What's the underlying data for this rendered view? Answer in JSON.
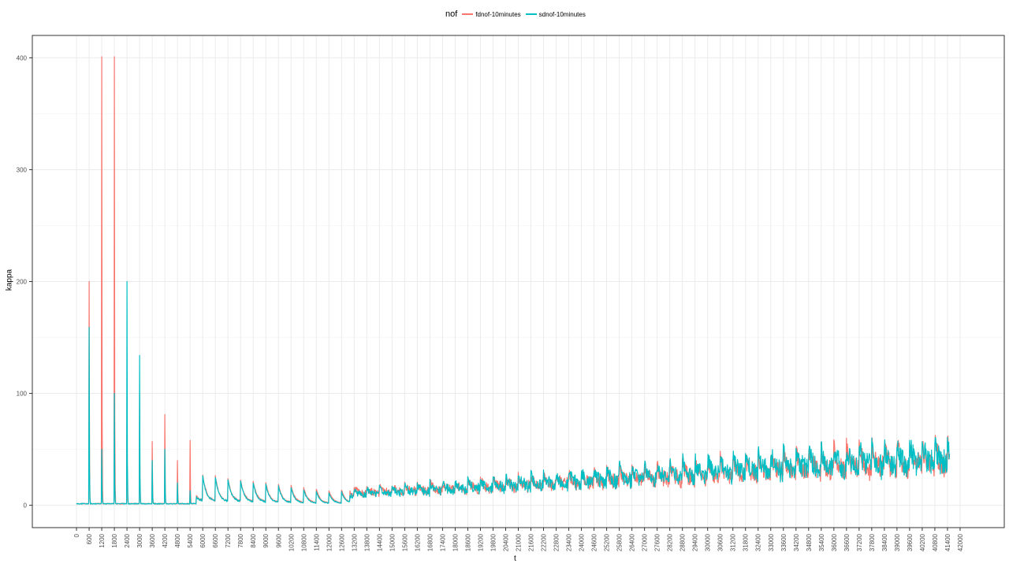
{
  "chart_data": {
    "type": "line",
    "title": "",
    "xlabel": "t",
    "ylabel": "kappa",
    "xlim": [
      -2100,
      44100
    ],
    "ylim": [
      -20,
      420
    ],
    "y_ticks": [
      0,
      100,
      200,
      300,
      400
    ],
    "x_tick_step": 600,
    "x_tick_max": 42000,
    "grid": true,
    "legend": {
      "title": "nof",
      "placement": "top"
    },
    "series": [
      {
        "name": "fdnof-10minutes",
        "color": "#F8766D",
        "peaks": [
          [
            600,
            200
          ],
          [
            1200,
            401
          ],
          [
            1800,
            401
          ],
          [
            2400,
            100
          ],
          [
            3000,
            100
          ],
          [
            3600,
            57
          ],
          [
            4200,
            81
          ],
          [
            4800,
            40
          ],
          [
            5400,
            58
          ]
        ],
        "trend": [
          [
            6000,
            25
          ],
          [
            12000,
            12
          ],
          [
            18000,
            18
          ],
          [
            24000,
            25
          ],
          [
            30000,
            33
          ],
          [
            36000,
            42
          ],
          [
            41500,
            48
          ]
        ]
      },
      {
        "name": "sdnof-10minutes",
        "color": "#00BFC4",
        "peaks": [
          [
            600,
            159
          ],
          [
            1200,
            50
          ],
          [
            1800,
            100
          ],
          [
            2400,
            200
          ],
          [
            3000,
            134
          ],
          [
            3600,
            40
          ],
          [
            4200,
            50
          ],
          [
            4800,
            20
          ],
          [
            5400,
            13
          ]
        ],
        "trend": [
          [
            6000,
            24
          ],
          [
            12000,
            10
          ],
          [
            18000,
            18
          ],
          [
            24000,
            26
          ],
          [
            30000,
            35
          ],
          [
            36000,
            44
          ],
          [
            41500,
            48
          ]
        ]
      }
    ]
  }
}
